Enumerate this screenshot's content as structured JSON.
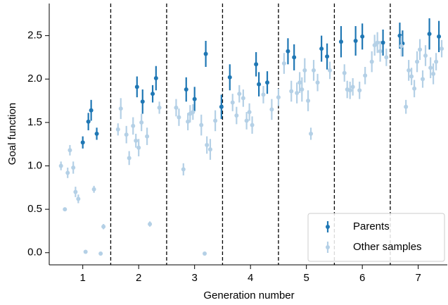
{
  "chart_data": {
    "type": "errorbar-scatter",
    "x_label": "Generation number",
    "y_label": "Goal function",
    "xlim": [
      0.4,
      7.52
    ],
    "ylim": [
      -0.14,
      2.87
    ],
    "xticks": [
      1,
      2,
      3,
      4,
      5,
      6,
      7
    ],
    "yticks": [
      {
        "value": 0,
        "label": "0.0"
      },
      {
        "value": 0.5,
        "label": "0.5"
      },
      {
        "value": 1,
        "label": "1.0"
      },
      {
        "value": 1.5,
        "label": "1.5"
      },
      {
        "value": 2,
        "label": "2.0"
      },
      {
        "value": 2.5,
        "label": "2.5"
      }
    ],
    "vlines": [
      1.5,
      2.5,
      3.5,
      4.5,
      5.5,
      6.5
    ],
    "legend": "lower right",
    "series": [
      {
        "name": "Parents",
        "color": "#1f77b4",
        "x": [
          1.0,
          1.1,
          1.15,
          1.25,
          1.97,
          2.07,
          2.25,
          2.31,
          2.85,
          3.0,
          3.2,
          3.48,
          3.63,
          4.1,
          4.15,
          4.3,
          4.67,
          4.78,
          5.27,
          5.37,
          5.62,
          5.88,
          6.0,
          6.37,
          6.67,
          6.72,
          7.2,
          7.37
        ],
        "values": [
          1.27,
          1.51,
          1.64,
          1.37,
          1.91,
          1.74,
          1.83,
          2.01,
          1.88,
          1.77,
          2.29,
          1.68,
          2.02,
          2.17,
          1.94,
          1.96,
          2.32,
          2.25,
          2.35,
          2.26,
          2.43,
          2.44,
          2.49,
          2.42,
          2.5,
          2.41,
          2.52,
          2.49
        ],
        "errors": [
          0.07,
          0.1,
          0.12,
          0.07,
          0.12,
          0.14,
          0.1,
          0.14,
          0.14,
          0.14,
          0.15,
          0.14,
          0.15,
          0.14,
          0.14,
          0.13,
          0.15,
          0.15,
          0.15,
          0.15,
          0.18,
          0.17,
          0.15,
          0.15,
          0.15,
          0.15,
          0.18,
          0.18
        ]
      },
      {
        "name": "Other samples",
        "color": "#b4d0e6",
        "x": [
          0.61,
          0.68,
          0.73,
          0.77,
          0.83,
          0.87,
          0.92,
          1.05,
          1.2,
          1.32,
          1.37,
          1.63,
          1.68,
          1.78,
          1.83,
          1.9,
          1.95,
          2.0,
          2.05,
          2.15,
          2.2,
          2.37,
          2.67,
          2.72,
          2.8,
          2.88,
          2.92,
          2.97,
          3.12,
          3.18,
          3.22,
          3.28,
          3.37,
          3.68,
          3.75,
          3.8,
          3.87,
          3.93,
          3.98,
          4.03,
          4.23,
          4.38,
          4.5,
          4.6,
          4.73,
          4.83,
          4.88,
          4.92,
          4.97,
          5.03,
          5.08,
          5.13,
          5.2,
          5.42,
          5.68,
          5.73,
          5.78,
          5.83,
          5.95,
          6.05,
          6.17,
          6.22,
          6.27,
          6.32,
          6.43,
          6.7,
          6.78,
          6.83,
          6.88,
          6.93,
          6.98,
          7.03,
          7.08,
          7.13,
          7.22,
          7.27,
          7.32,
          7.42
        ],
        "values": [
          1.0,
          0.5,
          0.92,
          1.18,
          0.98,
          0.7,
          0.62,
          0.01,
          0.73,
          -0.01,
          0.3,
          1.42,
          1.66,
          1.36,
          1.09,
          1.46,
          1.29,
          1.21,
          1.5,
          1.34,
          0.33,
          1.67,
          1.67,
          1.56,
          0.96,
          1.51,
          1.6,
          1.62,
          1.47,
          -0.01,
          1.24,
          1.19,
          1.52,
          1.73,
          1.58,
          1.83,
          1.78,
          1.52,
          1.62,
          1.47,
          1.82,
          1.65,
          1.79,
          2.18,
          1.86,
          1.84,
          1.96,
          1.88,
          2.1,
          1.75,
          1.37,
          2.1,
          1.96,
          2.1,
          2.07,
          1.88,
          1.87,
          1.91,
          1.87,
          2.04,
          2.2,
          2.39,
          2.42,
          2.32,
          2.25,
          2.38,
          1.68,
          2.1,
          2.03,
          1.89,
          2.2,
          2.34,
          2.0,
          2.27,
          2.13,
          2.06,
          2.2,
          2.35
        ],
        "errors": [
          0.05,
          0.02,
          0.06,
          0.06,
          0.07,
          0.06,
          0.05,
          0.02,
          0.04,
          0.02,
          0.03,
          0.07,
          0.12,
          0.1,
          0.08,
          0.1,
          0.08,
          0.1,
          0.1,
          0.1,
          0.03,
          0.07,
          0.1,
          0.1,
          0.07,
          0.1,
          0.1,
          0.09,
          0.12,
          0.02,
          0.1,
          0.12,
          0.12,
          0.1,
          0.1,
          0.1,
          0.1,
          0.1,
          0.1,
          0.1,
          0.1,
          0.12,
          0.1,
          0.12,
          0.12,
          0.12,
          0.12,
          0.14,
          0.14,
          0.12,
          0.07,
          0.12,
          0.1,
          0.1,
          0.1,
          0.1,
          0.1,
          0.1,
          0.1,
          0.1,
          0.12,
          0.12,
          0.12,
          0.12,
          0.1,
          0.12,
          0.08,
          0.12,
          0.1,
          0.1,
          0.12,
          0.12,
          0.1,
          0.12,
          0.12,
          0.12,
          0.1,
          0.1
        ]
      }
    ]
  }
}
